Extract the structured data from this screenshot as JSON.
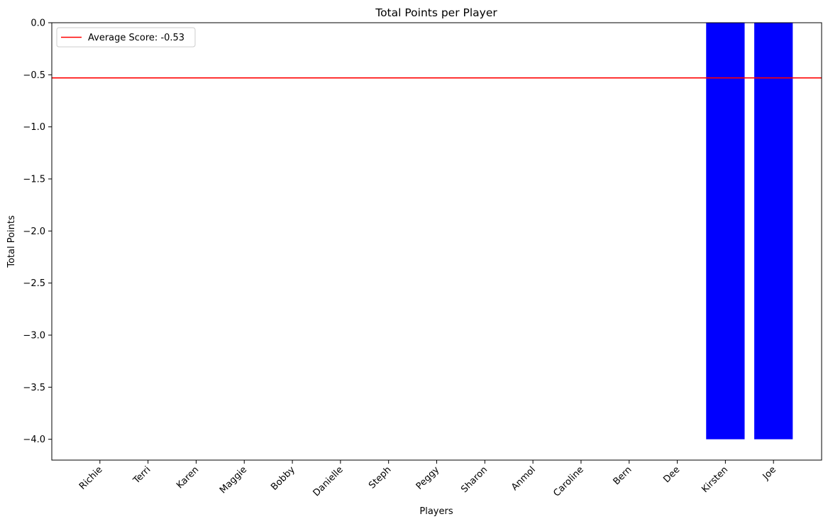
{
  "chart_data": {
    "type": "bar",
    "title": "Total Points per Player",
    "xlabel": "Players",
    "ylabel": "Total Points",
    "categories": [
      "Richie",
      "Terri",
      "Karen",
      "Maggie",
      "Bobby",
      "Danielle",
      "Steph",
      "Peggy",
      "Sharon",
      "Anmol",
      "Caroline",
      "Bern",
      "Dee",
      "Kirsten",
      "Joe"
    ],
    "values": [
      0,
      0,
      0,
      0,
      0,
      0,
      0,
      0,
      0,
      0,
      0,
      0,
      0,
      -4,
      -4
    ],
    "ylim": [
      -4.2,
      0.0
    ],
    "yticks": [
      0.0,
      -0.5,
      -1.0,
      -1.5,
      -2.0,
      -2.5,
      -3.0,
      -3.5,
      -4.0
    ],
    "ytick_labels": [
      "0.0",
      "−0.5",
      "−1.0",
      "−1.5",
      "−2.0",
      "−2.5",
      "−3.0",
      "−3.5",
      "−4.0"
    ],
    "average": -0.53,
    "legend": {
      "label": "Average Score: -0.53",
      "placement": "top-left"
    },
    "grid": false,
    "bar_color": "#0000ff",
    "average_line_color": "#ff0000"
  }
}
